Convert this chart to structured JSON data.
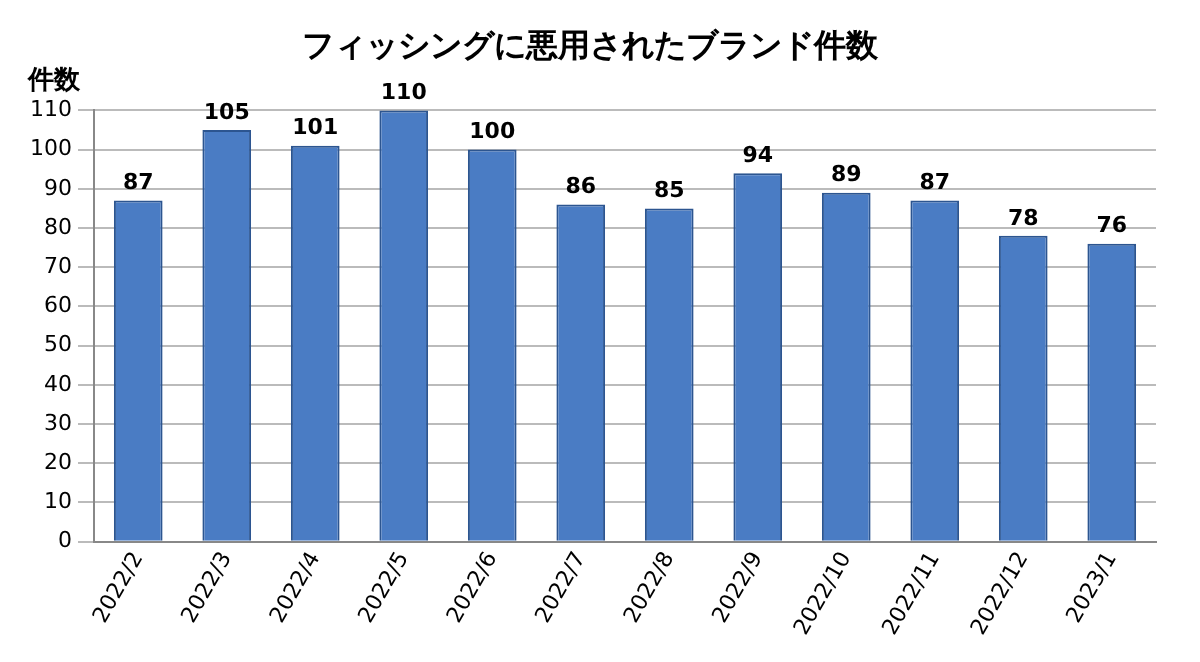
{
  "chart_data": {
    "type": "bar",
    "title": "フィッシングに悪用されたブランド件数",
    "ylabel": "件数",
    "categories": [
      "2022/2",
      "2022/3",
      "2022/4",
      "2022/5",
      "2022/6",
      "2022/7",
      "2022/8",
      "2022/9",
      "2022/10",
      "2022/11",
      "2022/12",
      "2023/1"
    ],
    "values": [
      87,
      105,
      101,
      110,
      100,
      86,
      85,
      94,
      89,
      87,
      78,
      76
    ],
    "color": "#4a7cc4",
    "ylim": [
      0,
      110
    ],
    "yticks": [
      0,
      10,
      20,
      30,
      40,
      50,
      60,
      70,
      80,
      90,
      100,
      110
    ],
    "grid": "y",
    "data_labels": true,
    "legend": false
  }
}
